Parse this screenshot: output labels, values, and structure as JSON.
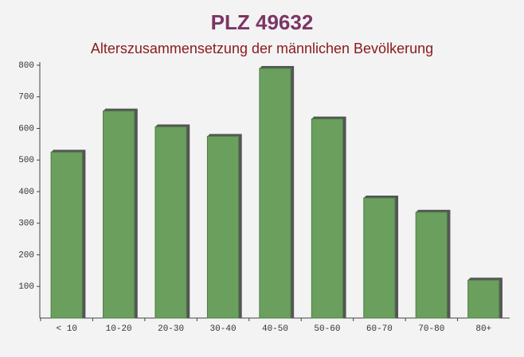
{
  "chart_data": {
    "type": "bar",
    "title": "PLZ 49632",
    "subtitle": "Alterszusammensetzung der männlichen Bevölkerung",
    "categories": [
      "< 10",
      "10-20",
      "20-30",
      "30-40",
      "40-50",
      "50-60",
      "60-70",
      "70-80",
      "80+"
    ],
    "values": [
      525,
      655,
      605,
      575,
      790,
      630,
      380,
      335,
      120
    ],
    "color": "#6a9f5e",
    "ylim": [
      0,
      800
    ],
    "yticks": [
      100,
      200,
      300,
      400,
      500,
      600,
      700,
      800
    ],
    "grid": false
  }
}
